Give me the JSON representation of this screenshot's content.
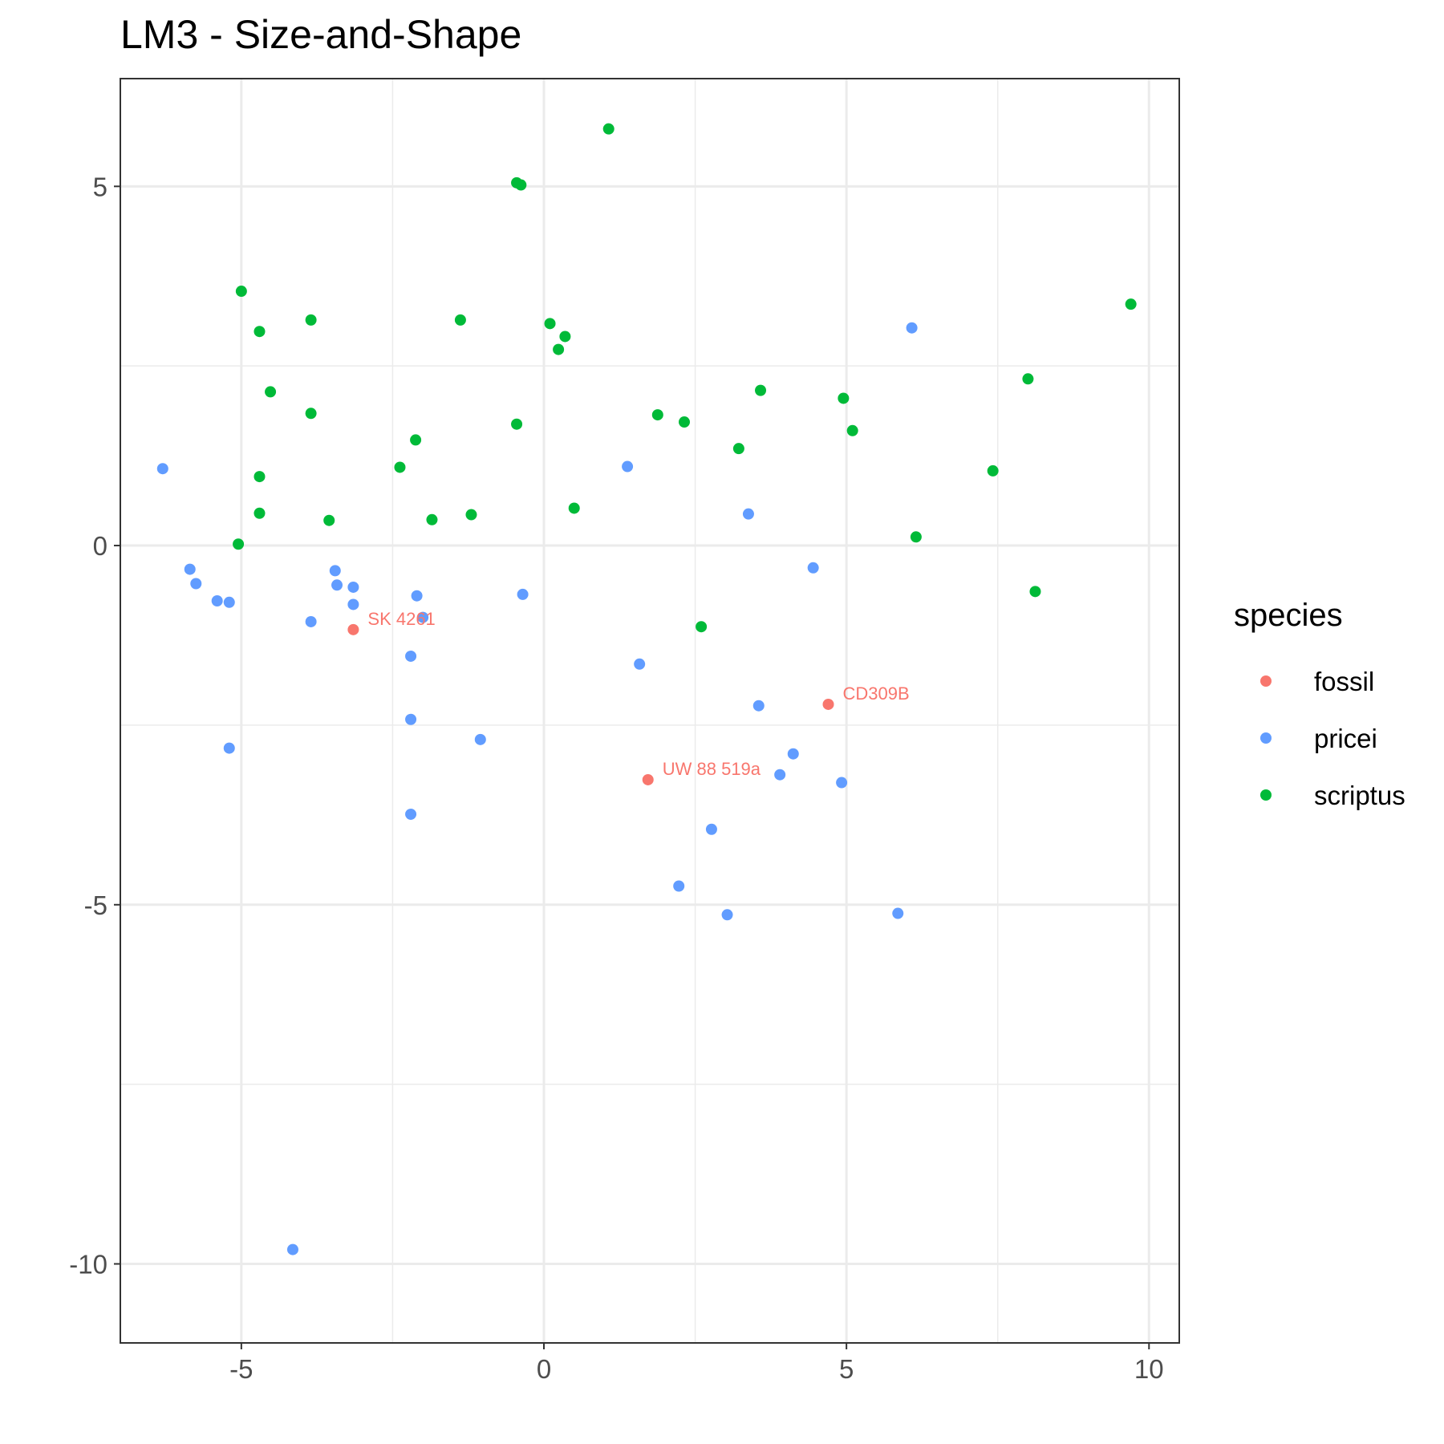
{
  "chart_data": {
    "type": "scatter",
    "title": "LM3 - Size-and-Shape",
    "xlabel": "",
    "ylabel": "",
    "xlim": [
      -7.0,
      10.5
    ],
    "ylim": [
      -11.1,
      6.5
    ],
    "x_ticks": [
      -5,
      0,
      5,
      10
    ],
    "x_tick_labels": [
      "-5",
      "0",
      "5",
      "10"
    ],
    "y_ticks": [
      5,
      0,
      -5,
      -10
    ],
    "y_tick_labels": [
      "5",
      "0",
      "-5",
      "-10"
    ],
    "grid": true,
    "legend": {
      "title": "species",
      "position": "right",
      "entries": [
        {
          "label": "fossil",
          "color": "#F8766D"
        },
        {
          "label": "pricei",
          "color": "#619CFF"
        },
        {
          "label": "scriptus",
          "color": "#00BA38"
        }
      ]
    },
    "series": [
      {
        "name": "fossil",
        "color": "#F8766D",
        "points": [
          {
            "x": -3.15,
            "y": -1.17,
            "label": "SK 4261"
          },
          {
            "x": 4.7,
            "y": -2.21,
            "label": "CD309B"
          },
          {
            "x": 1.72,
            "y": -3.26,
            "label": "UW 88 519a"
          }
        ]
      },
      {
        "name": "pricei",
        "color": "#619CFF",
        "points": [
          {
            "x": -6.3,
            "y": 1.07
          },
          {
            "x": -5.85,
            "y": -0.33
          },
          {
            "x": -5.75,
            "y": -0.53
          },
          {
            "x": -5.4,
            "y": -0.77
          },
          {
            "x": -5.2,
            "y": -0.79
          },
          {
            "x": -5.2,
            "y": -2.82
          },
          {
            "x": -4.15,
            "y": -9.8
          },
          {
            "x": -3.85,
            "y": -1.06
          },
          {
            "x": -3.45,
            "y": -0.35
          },
          {
            "x": -3.42,
            "y": -0.55
          },
          {
            "x": -3.15,
            "y": -0.58
          },
          {
            "x": -3.15,
            "y": -0.82
          },
          {
            "x": -2.1,
            "y": -0.7
          },
          {
            "x": -2.0,
            "y": -1.0
          },
          {
            "x": -2.2,
            "y": -1.54
          },
          {
            "x": -2.2,
            "y": -2.42
          },
          {
            "x": -2.2,
            "y": -3.74
          },
          {
            "x": -1.05,
            "y": -2.7
          },
          {
            "x": -0.35,
            "y": -0.68
          },
          {
            "x": 1.38,
            "y": 1.1
          },
          {
            "x": 1.58,
            "y": -1.65
          },
          {
            "x": 2.23,
            "y": -4.74
          },
          {
            "x": 2.77,
            "y": -3.95
          },
          {
            "x": 3.03,
            "y": -5.14
          },
          {
            "x": 3.38,
            "y": 0.44
          },
          {
            "x": 3.55,
            "y": -2.23
          },
          {
            "x": 3.9,
            "y": -3.19
          },
          {
            "x": 4.12,
            "y": -2.9
          },
          {
            "x": 4.45,
            "y": -0.31
          },
          {
            "x": 4.92,
            "y": -3.3
          },
          {
            "x": 5.85,
            "y": -5.12
          },
          {
            "x": 6.08,
            "y": 3.03
          }
        ]
      },
      {
        "name": "scriptus",
        "color": "#00BA38",
        "points": [
          {
            "x": -5.0,
            "y": 3.54
          },
          {
            "x": -5.05,
            "y": 0.02
          },
          {
            "x": -4.7,
            "y": 2.98
          },
          {
            "x": -4.7,
            "y": 0.96
          },
          {
            "x": -4.7,
            "y": 0.45
          },
          {
            "x": -4.52,
            "y": 2.14
          },
          {
            "x": -3.85,
            "y": 3.14
          },
          {
            "x": -3.85,
            "y": 1.84
          },
          {
            "x": -3.55,
            "y": 0.35
          },
          {
            "x": -2.38,
            "y": 1.09
          },
          {
            "x": -2.12,
            "y": 1.47
          },
          {
            "x": -1.85,
            "y": 0.36
          },
          {
            "x": -1.38,
            "y": 3.14
          },
          {
            "x": -1.2,
            "y": 0.43
          },
          {
            "x": -0.45,
            "y": 5.05
          },
          {
            "x": -0.38,
            "y": 5.02
          },
          {
            "x": -0.45,
            "y": 1.69
          },
          {
            "x": 0.1,
            "y": 3.09
          },
          {
            "x": 0.24,
            "y": 2.73
          },
          {
            "x": 0.35,
            "y": 2.91
          },
          {
            "x": 0.5,
            "y": 0.52
          },
          {
            "x": 1.07,
            "y": 5.8
          },
          {
            "x": 1.88,
            "y": 1.82
          },
          {
            "x": 2.32,
            "y": 1.72
          },
          {
            "x": 2.6,
            "y": -1.13
          },
          {
            "x": 3.22,
            "y": 1.35
          },
          {
            "x": 3.58,
            "y": 2.16
          },
          {
            "x": 4.95,
            "y": 2.05
          },
          {
            "x": 5.1,
            "y": 1.6
          },
          {
            "x": 6.15,
            "y": 0.12
          },
          {
            "x": 7.42,
            "y": 1.04
          },
          {
            "x": 8.0,
            "y": 2.32
          },
          {
            "x": 8.12,
            "y": -0.64
          },
          {
            "x": 9.7,
            "y": 3.36
          }
        ]
      }
    ]
  }
}
